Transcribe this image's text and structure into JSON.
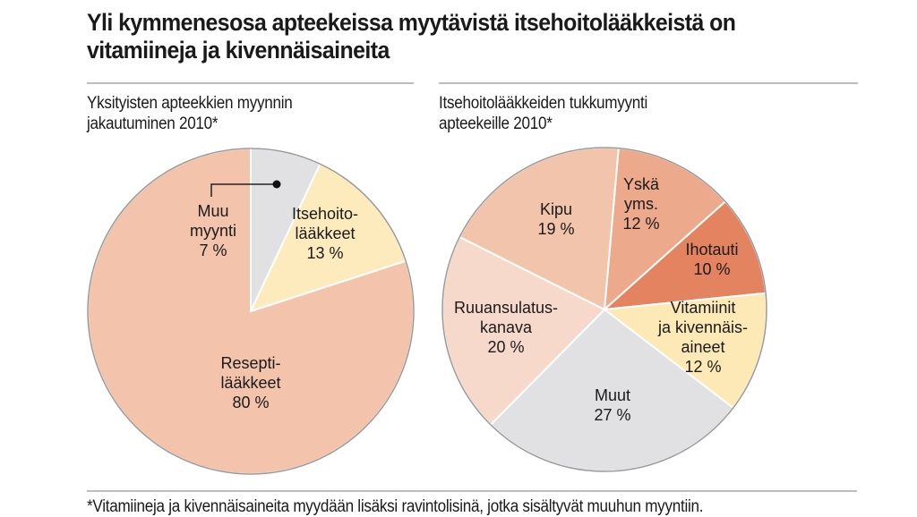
{
  "title": "Yli kymmenesosa apteekeissa myytävistä itsehoitolääkkeistä on vitamiineja ja kivennäisaineita",
  "footnote": "*Vitamiineja ja kivennäisaineita myydään lisäksi ravintolisinä, jotka sisältyvät muuhun myyntiin.",
  "chart_data": [
    {
      "type": "pie",
      "title": "Yksityisten apteekkien myynnin jakautuminen 2010*",
      "slices": [
        {
          "label": "Muu myynti",
          "value": 7,
          "color": "#e1e1e3"
        },
        {
          "label": "Itsehoito-lääkkeet",
          "value": 13,
          "color": "#fdebbd"
        },
        {
          "label": "Resepti-lääkkeet",
          "value": 80,
          "color": "#f3c4ab"
        }
      ]
    },
    {
      "type": "pie",
      "title": "Itsehoitolääkkeiden tukkumyynti apteekeille 2010*",
      "slices": [
        {
          "label": "Yskä yms.",
          "value": 12,
          "color": "#eca98b"
        },
        {
          "label": "Ihotauti",
          "value": 10,
          "color": "#e4835f"
        },
        {
          "label": "Vitamiinit ja kivennäis-aineet",
          "value": 12,
          "color": "#fde9b6"
        },
        {
          "label": "Muut",
          "value": 27,
          "color": "#e1e1e3"
        },
        {
          "label": "Ruuansulatus-kanava",
          "value": 20,
          "color": "#f7d9cb"
        },
        {
          "label": "Kipu",
          "value": 19,
          "color": "#f2c4ab"
        }
      ]
    }
  ]
}
